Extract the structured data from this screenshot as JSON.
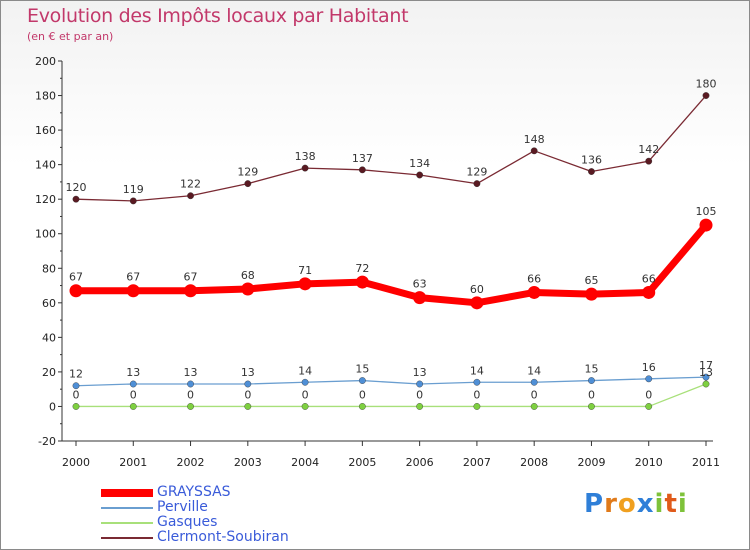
{
  "title": "Evolution des Impôts locaux par Habitant",
  "subtitle": "(en € et par an)",
  "logo_text": "Proxiti",
  "chart_data": {
    "type": "line",
    "x": [
      "2000",
      "2001",
      "2002",
      "2003",
      "2004",
      "2005",
      "2006",
      "2007",
      "2008",
      "2009",
      "2010",
      "2011"
    ],
    "ylim": [
      -20,
      200
    ],
    "yticks": [
      -20,
      0,
      20,
      40,
      60,
      80,
      100,
      120,
      140,
      160,
      180,
      200
    ],
    "grid": false,
    "legend_position": "bottom-left",
    "series": [
      {
        "name": "Clermont-Soubiran",
        "color": "#7a2a33",
        "values": [
          120,
          119,
          122,
          129,
          138,
          137,
          134,
          129,
          148,
          136,
          142,
          180
        ],
        "labels": [
          "120",
          "119",
          "122",
          "129",
          "138",
          "137",
          "134",
          "129",
          "148",
          "136",
          "142",
          "180"
        ]
      },
      {
        "name": "Perville",
        "color": "#6a9ed0",
        "values": [
          12,
          13,
          13,
          13,
          14,
          15,
          13,
          14,
          14,
          15,
          16,
          17
        ],
        "labels": [
          "12",
          "13",
          "13",
          "13",
          "14",
          "15",
          "13",
          "14",
          "14",
          "15",
          "16",
          "17"
        ]
      },
      {
        "name": "Gasques",
        "color": "#a8e07a",
        "values": [
          0,
          0,
          0,
          0,
          0,
          0,
          0,
          0,
          0,
          0,
          0,
          13
        ],
        "labels": [
          "0",
          "0",
          "0",
          "0",
          "0",
          "0",
          "0",
          "0",
          "0",
          "0",
          "0",
          "13"
        ]
      },
      {
        "name": "GRAYSSAS",
        "color": "#ff0000",
        "values": [
          67,
          67,
          67,
          68,
          71,
          72,
          63,
          60,
          66,
          65,
          66,
          105
        ],
        "labels": [
          "67",
          "67",
          "67",
          "68",
          "71",
          "72",
          "63",
          "60",
          "66",
          "65",
          "66",
          "105"
        ]
      }
    ],
    "legend": [
      {
        "name": "GRAYSSAS",
        "color": "#ff0000"
      },
      {
        "name": "Perville",
        "color": "#6a9ed0"
      },
      {
        "name": "Gasques",
        "color": "#a8e07a"
      },
      {
        "name": "Clermont-Soubiran",
        "color": "#7a2a33"
      }
    ]
  }
}
